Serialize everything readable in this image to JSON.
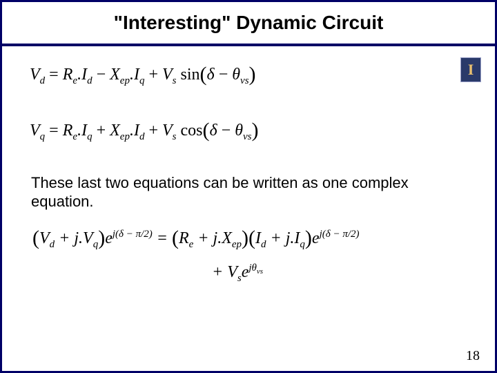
{
  "title": "\"Interesting\" Dynamic Circuit",
  "logo_letter": "I",
  "eq1": {
    "lhs_var": "V",
    "lhs_sub": "d",
    "t1a": "R",
    "t1a_sub": "e",
    "t1b": "I",
    "t1b_sub": "d",
    "t2a": "X",
    "t2a_sub": "ep",
    "t2b": "I",
    "t2b_sub": "q",
    "t3a": "V",
    "t3a_sub": "s",
    "trig": "sin",
    "arg1": "δ",
    "arg2": "θ",
    "arg2_sub": "vs"
  },
  "eq2": {
    "lhs_var": "V",
    "lhs_sub": "q",
    "t1a": "R",
    "t1a_sub": "e",
    "t1b": "I",
    "t1b_sub": "q",
    "t2a": "X",
    "t2a_sub": "ep",
    "t2b": "I",
    "t2b_sub": "d",
    "t3a": "V",
    "t3a_sub": "s",
    "trig": "cos",
    "arg1": "δ",
    "arg2": "θ",
    "arg2_sub": "vs"
  },
  "body_text": "These last two equations can be written as one complex equation.",
  "eq3": {
    "l1a": "V",
    "l1a_sub": "d",
    "l1b": "j.V",
    "l1b_sub": "q",
    "exp1": "j(δ − π/2)",
    "r1a": "R",
    "r1a_sub": "e",
    "r1b": "j.X",
    "r1b_sub": "ep",
    "r2a": "I",
    "r2a_sub": "d",
    "r2b": "j.I",
    "r2b_sub": "q",
    "exp2": "j(δ − π/2)",
    "tail_a": "V",
    "tail_a_sub": "s",
    "exp3": "jθ",
    "exp3_sub": "vs"
  },
  "page_number": "18",
  "colors": {
    "border": "#000066",
    "bg": "#ffffff",
    "text": "#000000",
    "logo_bg": "#2a3a6a",
    "logo_fg": "#e8c070"
  }
}
